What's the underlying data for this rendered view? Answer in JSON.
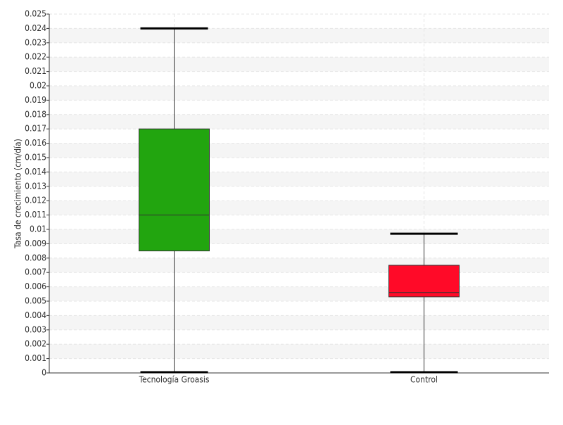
{
  "chart_data": {
    "type": "box",
    "y_label": "Tasa de crecimiento (cm/día)",
    "categories": [
      "Tecnología Groasis",
      "Control"
    ],
    "boxes": [
      {
        "min": 0,
        "q1": 0.0085,
        "median": 0.011,
        "q3": 0.017,
        "max": 0.024,
        "color": "#22a50f"
      },
      {
        "min": 0,
        "q1": 0.0053,
        "median": 0.0056,
        "q3": 0.0075,
        "max": 0.0097,
        "color": "#ff0a28"
      }
    ],
    "ylim": [
      0,
      0.025
    ],
    "yticks": [
      0,
      0.001,
      0.002,
      0.003,
      0.004,
      0.005,
      0.006,
      0.007,
      0.008,
      0.009,
      0.01,
      0.011,
      0.012,
      0.013,
      0.014,
      0.015,
      0.016,
      0.017,
      0.018,
      0.019,
      0.02,
      0.021,
      0.022,
      0.023,
      0.024,
      0.025
    ],
    "grid": true
  }
}
